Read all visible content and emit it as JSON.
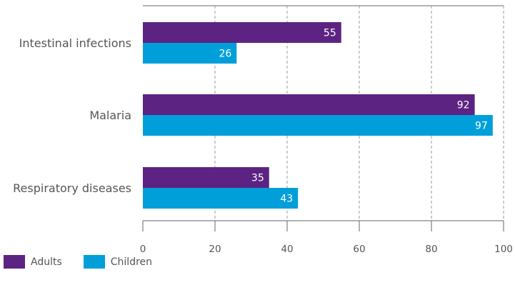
{
  "chart_data": {
    "type": "bar",
    "orientation": "horizontal",
    "categories": [
      "Intestinal infections",
      "Malaria",
      "Respiratory diseases"
    ],
    "series": [
      {
        "name": "Adults",
        "values": [
          55,
          92,
          35
        ]
      },
      {
        "name": "Children",
        "values": [
          26,
          97,
          43
        ]
      }
    ],
    "xlim": [
      0,
      100
    ],
    "xticks": [
      "0",
      "20",
      "40",
      "60",
      "80",
      "100"
    ],
    "grid": "vertical dashed",
    "legend_position": "bottom-left",
    "colors": {
      "Adults": "#5c2382",
      "Children": "#009fda"
    }
  }
}
